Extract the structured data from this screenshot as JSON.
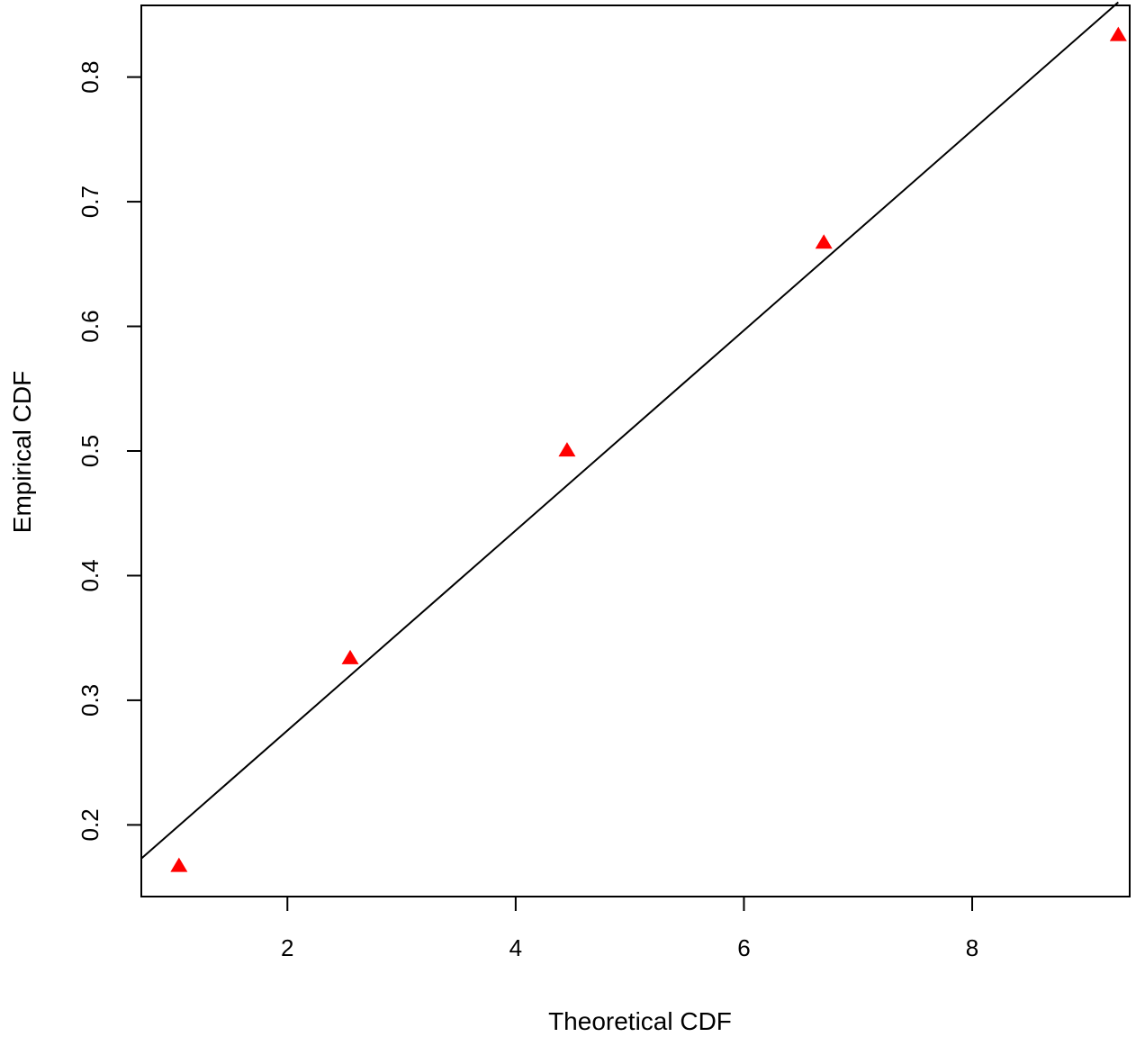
{
  "chart_data": {
    "type": "scatter",
    "title": "",
    "xlabel": "Theoretical CDF",
    "ylabel": "Empirical CDF",
    "xlim": [
      0.72,
      9.38
    ],
    "ylim": [
      0.1425,
      0.8575
    ],
    "x_ticks": [
      2,
      4,
      6,
      8
    ],
    "x_tick_labels": [
      "2",
      "4",
      "6",
      "8"
    ],
    "y_ticks": [
      0.2,
      0.3,
      0.4,
      0.5,
      0.6,
      0.7,
      0.8
    ],
    "y_tick_labels": [
      "0.2",
      "0.3",
      "0.4",
      "0.5",
      "0.6",
      "0.7",
      "0.8"
    ],
    "grid": false,
    "legend": "none",
    "series": [
      {
        "marker": "triangle",
        "color": "#ff0000",
        "x": [
          1.05,
          2.55,
          4.45,
          6.7,
          9.28
        ],
        "y": [
          0.1667,
          0.3333,
          0.5,
          0.6667,
          0.8333
        ]
      }
    ],
    "reference_line": {
      "color": "#000000",
      "x": [
        0.72,
        9.28
      ],
      "y": [
        0.173,
        0.86
      ]
    }
  }
}
